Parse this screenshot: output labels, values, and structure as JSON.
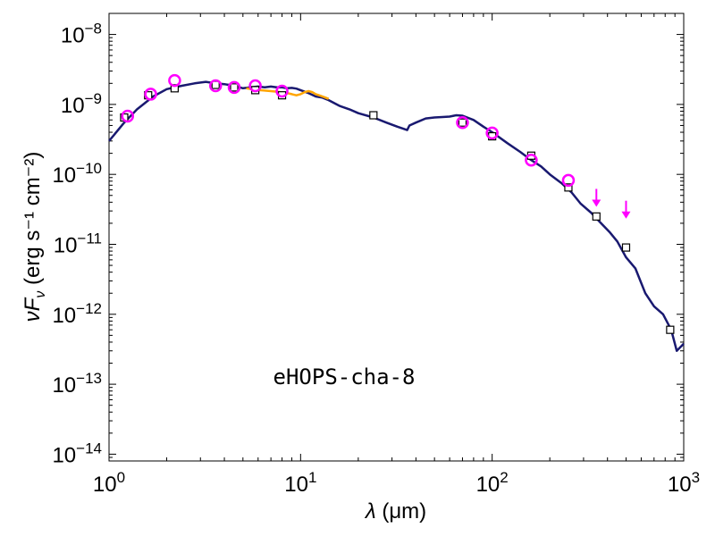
{
  "chart_data": {
    "type": "scatter",
    "annotation": "eHOPS-cha-8",
    "xlabel_prefix": "λ",
    "xlabel_unit": "(μm)",
    "ylabel_prefix": "νF",
    "ylabel_sub": "ν",
    "ylabel_unit": "(erg s⁻¹ cm⁻²)",
    "x_scale": "log",
    "y_scale": "log",
    "xlim": [
      1,
      1000
    ],
    "ylim": [
      8e-15,
      2e-08
    ],
    "x_ticks": [
      {
        "value": 1,
        "base": "10",
        "exp": "0"
      },
      {
        "value": 10,
        "base": "10",
        "exp": "1"
      },
      {
        "value": 100,
        "base": "10",
        "exp": "2"
      },
      {
        "value": 1000,
        "base": "10",
        "exp": "3"
      }
    ],
    "y_ticks": [
      {
        "value": 1e-14,
        "base": "10",
        "exp": "−14"
      },
      {
        "value": 1e-13,
        "base": "10",
        "exp": "−13"
      },
      {
        "value": 1e-12,
        "base": "10",
        "exp": "−12"
      },
      {
        "value": 1e-11,
        "base": "10",
        "exp": "−11"
      },
      {
        "value": 1e-10,
        "base": "10",
        "exp": "−10"
      },
      {
        "value": 1e-09,
        "base": "10",
        "exp": "−9"
      },
      {
        "value": 1e-08,
        "base": "10",
        "exp": "−8"
      }
    ],
    "grid": false,
    "series": [
      {
        "kind": "model_line",
        "color": "#191970",
        "x": [
          1.0,
          1.2,
          1.4,
          1.7,
          2.0,
          2.4,
          2.8,
          3.2,
          3.6,
          4.0,
          4.5,
          5.0,
          5.5,
          6.0,
          6.5,
          7.0,
          7.5,
          8.0,
          8.5,
          9.0,
          9.5,
          10.0,
          11.0,
          12.0,
          13.0,
          14.0,
          16.0,
          18.0,
          20.0,
          24.0,
          28.0,
          32.0,
          36.0,
          37.0,
          40.0,
          45.0,
          50.0,
          55.0,
          60.0,
          65.0,
          70.0,
          80.0,
          90.0,
          100.0,
          120.0,
          140.0,
          160.0,
          180.0,
          200.0,
          230.0,
          260.0,
          290.0,
          330.0,
          370.0,
          410.0,
          450.0,
          500.0,
          560.0,
          630.0,
          700.0,
          780.0,
          860.0,
          920.0,
          1000.0
        ],
        "y": [
          3e-10,
          5.5e-10,
          8.5e-10,
          1.3e-09,
          1.65e-09,
          1.85e-09,
          2e-09,
          2.1e-09,
          2e-09,
          1.95e-09,
          1.85e-09,
          1.7e-09,
          1.75e-09,
          1.8e-09,
          1.75e-09,
          1.8e-09,
          1.75e-09,
          1.75e-09,
          1.7e-09,
          1.72e-09,
          1.68e-09,
          1.6e-09,
          1.45e-09,
          1.3e-09,
          1.25e-09,
          1.15e-09,
          9.5e-10,
          8.5e-10,
          7.5e-10,
          6.5e-10,
          5.5e-10,
          4.8e-10,
          4.3e-10,
          5e-10,
          5.5e-10,
          6.3e-10,
          6.5e-10,
          6.6e-10,
          6.7e-10,
          7e-10,
          6.9e-10,
          6e-10,
          4.8e-10,
          4e-10,
          2.8e-10,
          2.1e-10,
          1.6e-10,
          1.3e-10,
          1e-10,
          7.5e-11,
          5.5e-11,
          3.8e-11,
          2.8e-11,
          2e-11,
          1.5e-11,
          1.1e-11,
          6.5e-12,
          4.5e-12,
          2e-12,
          1.3e-12,
          1e-12,
          6e-13,
          3e-13,
          3.8e-13
        ]
      },
      {
        "kind": "spectrum_line",
        "color": "#FFA500",
        "x": [
          5.2,
          5.8,
          6.4,
          7.0,
          7.5,
          8.0,
          8.5,
          9.0,
          9.5,
          10.0,
          10.5,
          11.0,
          11.5,
          12.0,
          12.5,
          13.0,
          13.5,
          14.0
        ],
        "y": [
          1.7e-09,
          1.62e-09,
          1.58e-09,
          1.55e-09,
          1.52e-09,
          1.48e-09,
          1.45e-09,
          1.4e-09,
          1.35e-09,
          1.4e-09,
          1.5e-09,
          1.55e-09,
          1.5e-09,
          1.4e-09,
          1.35e-09,
          1.3e-09,
          1.25e-09,
          1.2e-09
        ]
      },
      {
        "kind": "model_points",
        "marker": "square",
        "color": "#000000",
        "x": [
          1.2,
          1.6,
          2.2,
          3.6,
          4.5,
          5.8,
          8.0,
          24.0,
          70.0,
          100.0,
          160.0,
          250.0,
          350.0,
          500.0,
          850.0
        ],
        "y": [
          6.5e-10,
          1.35e-09,
          1.7e-09,
          1.9e-09,
          1.75e-09,
          1.6e-09,
          1.35e-09,
          7e-10,
          5.5e-10,
          3.5e-10,
          1.85e-10,
          6.5e-11,
          2.5e-11,
          9e-12,
          6e-13
        ]
      },
      {
        "kind": "observed_points",
        "marker": "circle",
        "color": "#FF00FF",
        "x": [
          1.25,
          1.65,
          2.2,
          3.6,
          4.5,
          5.8,
          8.0,
          70.0,
          100.0,
          160.0,
          250.0
        ],
        "y": [
          6.8e-10,
          1.4e-09,
          2.2e-09,
          1.85e-09,
          1.75e-09,
          1.85e-09,
          1.55e-09,
          5.5e-10,
          3.9e-10,
          1.6e-10,
          8.2e-11
        ]
      },
      {
        "kind": "upper_limits",
        "marker": "down-arrow",
        "color": "#FF00FF",
        "x": [
          350.0,
          500.0
        ],
        "y": [
          6.2e-11,
          4.2e-11
        ]
      }
    ]
  }
}
